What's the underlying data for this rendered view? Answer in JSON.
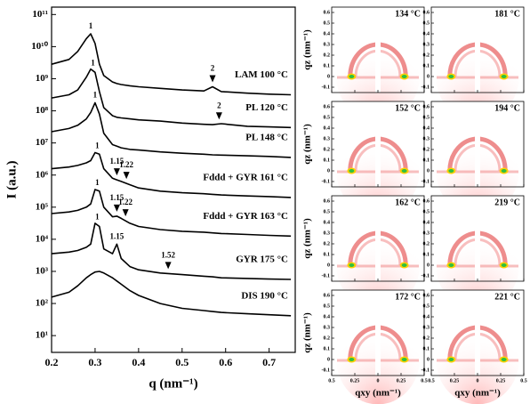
{
  "chart_data": [
    {
      "type": "line",
      "xlabel": "q (nm⁻¹)",
      "ylabel": "I (a.u.)",
      "log_y": true,
      "color": "#000000",
      "xlim": [
        0.2,
        0.76
      ],
      "xticks": [
        0.2,
        0.3,
        0.4,
        0.5,
        0.6,
        0.7
      ],
      "ylim": [
        3,
        170000000000.0
      ],
      "yticks": [
        {
          "value": 10,
          "label": "10¹"
        },
        {
          "value": 100,
          "label": "10²"
        },
        {
          "value": 1000,
          "label": "10³"
        },
        {
          "value": 10000,
          "label": "10⁴"
        },
        {
          "value": 100000,
          "label": "10⁵"
        },
        {
          "value": 1000000,
          "label": "10⁶"
        },
        {
          "value": 10000000,
          "label": "10⁷"
        },
        {
          "value": 100000000,
          "label": "10⁸"
        },
        {
          "value": 1000000000,
          "label": "10⁹"
        },
        {
          "value": 10000000000,
          "label": "10¹⁰"
        },
        {
          "value": 100000000000,
          "label": "10¹¹"
        }
      ],
      "x": [
        0.2,
        0.24,
        0.26,
        0.28,
        0.29,
        0.3,
        0.31,
        0.32,
        0.34,
        0.35,
        0.36,
        0.38,
        0.4,
        0.45,
        0.5,
        0.55,
        0.57,
        0.59,
        0.65,
        0.7,
        0.75
      ],
      "series": [
        {
          "name": "LAM 100 °C",
          "values": [
            2820000000.0,
            3980000000.0,
            7080000000.0,
            17800000000.0,
            25100000000.0,
            12600000000.0,
            2820000000.0,
            1260000000.0,
            794000000.0,
            708000000.0,
            661000000.0,
            603000000.0,
            562000000.0,
            501000000.0,
            447000000.0,
            417000000.0,
            562000000.0,
            398000000.0,
            355000000.0,
            331000000.0,
            316000000.0
          ],
          "peaks": [
            {
              "label": "1",
              "x": 0.29,
              "arrow": false
            },
            {
              "label": "2",
              "x": 0.57,
              "arrow": true
            }
          ]
        },
        {
          "name": "PL 120 °C",
          "values": [
            251000000.0,
            316000000.0,
            447000000.0,
            1120000000.0,
            2000000000.0,
            1580000000.0,
            398000000.0,
            126000000.0,
            70800000.0,
            63100000.0,
            60300000.0,
            56200000.0,
            52500000.0,
            47900000.0,
            41700000.0,
            38000000.0,
            37200000.0,
            39800000.0,
            33100000.0,
            31600000.0,
            30200000.0
          ],
          "peaks": [
            {
              "label": "1",
              "x": 0.295,
              "arrow": false
            },
            {
              "label": "2",
              "x": 0.585,
              "arrow": true
            }
          ]
        },
        {
          "name": "PL 148 °C",
          "values": [
            22400000.0,
            28200000.0,
            35500000.0,
            56200000.0,
            89100000.0,
            178000000.0,
            79400000.0,
            20000000.0,
            8910000.0,
            7940000.0,
            7080000.0,
            6310000.0,
            6030000.0,
            5250000.0,
            4790000.0,
            4470000.0,
            4270000.0,
            4170000.0,
            3980000.0,
            3800000.0,
            3550000.0
          ],
          "peaks": [
            {
              "label": "1",
              "x": 0.3,
              "arrow": false
            }
          ]
        },
        {
          "name": "Fddd + GYR 161 °C",
          "values": [
            1580000.0,
            1780000.0,
            2000000.0,
            2400000.0,
            2820000.0,
            5010000.0,
            4470000.0,
            1580000.0,
            794000.0,
            708000.0,
            631000.0,
            501000.0,
            398000.0,
            316000.0,
            282000.0,
            263000.0,
            251000.0,
            240000.0,
            224000.0,
            214000.0,
            200000.0
          ],
          "peaks": [
            {
              "label": "1",
              "x": 0.305,
              "arrow": false
            },
            {
              "label": "1.15",
              "x": 0.35,
              "arrow": true
            },
            {
              "label": "1.22",
              "x": 0.372,
              "arrow": true
            }
          ]
        },
        {
          "name": "Fddd + GYR 163 °C",
          "values": [
            63100.0,
            70800.0,
            79400.0,
            100000.0,
            126000.0,
            355000.0,
            316000.0,
            100000.0,
            50100.0,
            52500.0,
            44700.0,
            31600.0,
            25100.0,
            20000.0,
            17800.0,
            16600.0,
            15800.0,
            15100.0,
            14100.0,
            13200.0,
            12600.0
          ],
          "peaks": [
            {
              "label": "1",
              "x": 0.305,
              "arrow": false
            },
            {
              "label": "1.15",
              "x": 0.35,
              "arrow": true
            },
            {
              "label": "1.22",
              "x": 0.37,
              "arrow": true
            }
          ]
        },
        {
          "name": "GYR 175 °C",
          "values": [
            3550.0,
            3980.0,
            4470.0,
            5620.0,
            7080.0,
            31600.0,
            25100.0,
            5010.0,
            3550.0,
            7080.0,
            2510.0,
            1410.0,
            1120.0,
            891.0,
            794.0,
            708.0,
            676.0,
            631.0,
            603.0,
            575.0,
            562.0
          ],
          "peaks": [
            {
              "label": "1",
              "x": 0.305,
              "arrow": false
            },
            {
              "label": "1.15",
              "x": 0.35,
              "arrow": false
            },
            {
              "label": "1.52",
              "x": 0.468,
              "arrow": true
            }
          ]
        },
        {
          "name": "DIS 190 °C",
          "values": [
            158.0,
            224.0,
            355.0,
            631.0,
            794.0,
            955.0,
            1000.0,
            891.0,
            631.0,
            501.0,
            398.0,
            251.0,
            178.0,
            100.0,
            70.8,
            60.3,
            56.2,
            52.5,
            47.9,
            44.7,
            41.7
          ],
          "peaks": []
        }
      ]
    },
    {
      "type": "image-grid",
      "xlabel": "qxy (nm⁻¹)",
      "ylabel": "qz (nm⁻¹)",
      "panels": [
        "134 °C",
        "181 °C",
        "152 °C",
        "194 °C",
        "162 °C",
        "219 °C",
        "172 °C",
        "221 °C"
      ],
      "xlim": [
        -0.5,
        0.5
      ],
      "xticks": [
        {
          "value": -0.5,
          "label": "0.5"
        },
        {
          "value": -0.25,
          "label": "0.25"
        },
        0,
        0.25,
        0.5
      ],
      "ylim": [
        -0.15,
        0.65
      ],
      "yticks": [
        -0.1,
        0,
        0.1,
        0.2,
        0.3,
        0.4,
        0.5,
        0.6
      ]
    }
  ]
}
